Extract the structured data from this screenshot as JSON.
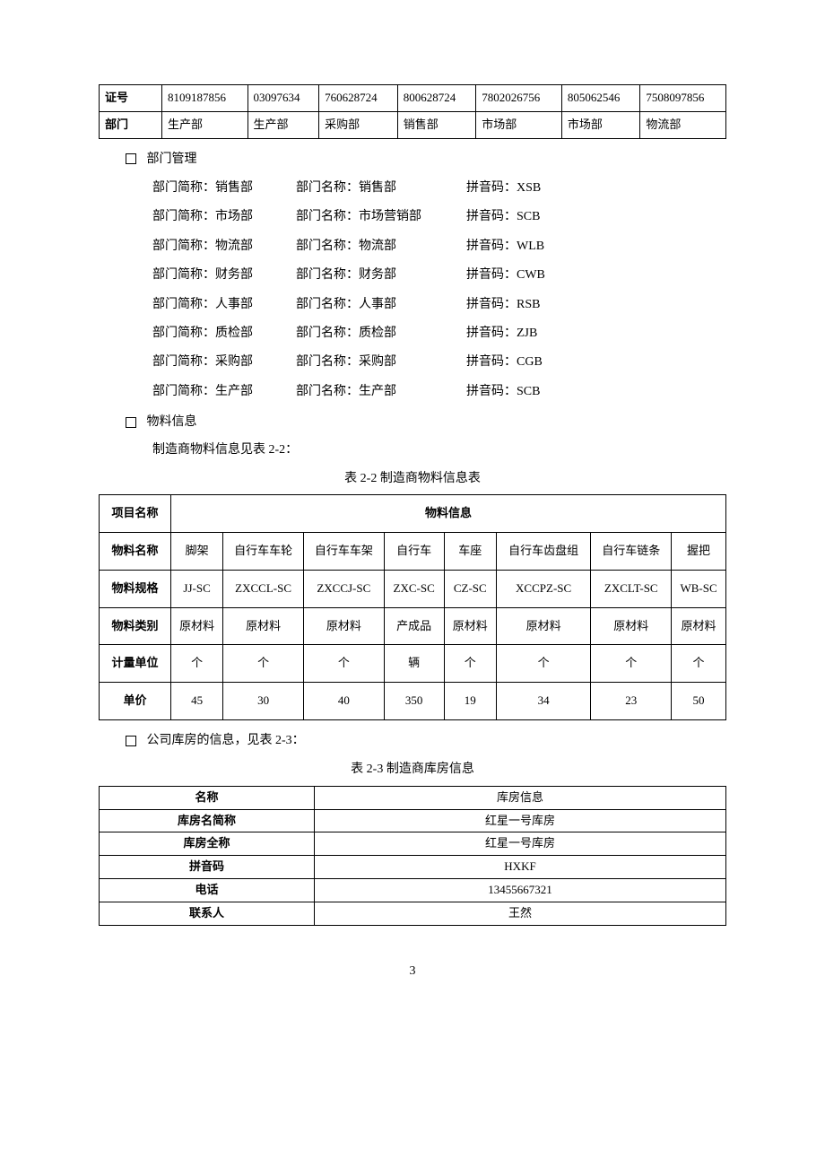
{
  "table1": {
    "row1_header": "证号",
    "row1_cells": [
      "8109187856",
      "03097634",
      "760628724",
      "800628724",
      "7802026756",
      "805062546",
      "7508097856"
    ],
    "row2_header": "部门",
    "row2_cells": [
      "生产部",
      "生产部",
      "采购部",
      "销售部",
      "市场部",
      "市场部",
      "物流部"
    ]
  },
  "section_dept_title": "部门管理",
  "dept_rows": [
    {
      "short_label": "部门简称：",
      "short": "销售部",
      "name_label": "部门名称：",
      "name": "销售部",
      "code_label": "拼音码：",
      "code": "XSB"
    },
    {
      "short_label": "部门简称：",
      "short": "市场部",
      "name_label": "部门名称：",
      "name": "市场营销部",
      "code_label": "拼音码：",
      "code": "SCB"
    },
    {
      "short_label": "部门简称：",
      "short": "物流部",
      "name_label": "部门名称：",
      "name": "物流部",
      "code_label": "拼音码：",
      "code": "WLB"
    },
    {
      "short_label": "部门简称：",
      "short": "财务部",
      "name_label": "部门名称：",
      "name": "财务部",
      "code_label": "拼音码：",
      "code": "CWB"
    },
    {
      "short_label": "部门简称：",
      "short": "人事部",
      "name_label": "部门名称：",
      "name": "人事部",
      "code_label": "拼音码：",
      "code": "RSB"
    },
    {
      "short_label": "部门简称：",
      "short": "质检部",
      "name_label": "部门名称：",
      "name": "质检部",
      "code_label": "拼音码：",
      "code": "ZJB"
    },
    {
      "short_label": "部门简称：",
      "short": "采购部",
      "name_label": "部门名称：",
      "name": "采购部",
      "code_label": "拼音码：",
      "code": "CGB"
    },
    {
      "short_label": "部门简称：",
      "short": "生产部",
      "name_label": "部门名称：",
      "name": "生产部",
      "code_label": "拼音码：",
      "code": "SCB"
    }
  ],
  "section_material_title": "物料信息",
  "material_note": "制造商物料信息见表 2-2：",
  "table2_caption": "表 2-2   制造商物料信息表",
  "table2": {
    "header_row1_col1": "项目名称",
    "header_row1_merged": "物料信息",
    "rows": [
      {
        "header": "物料名称",
        "cells": [
          "脚架",
          "自行车车轮",
          "自行车车架",
          "自行车",
          "车座",
          "自行车齿盘组",
          "自行车链条",
          "握把"
        ]
      },
      {
        "header": "物料规格",
        "cells": [
          "JJ-SC",
          "ZXCCL-SC",
          "ZXCCJ-SC",
          "ZXC-SC",
          "CZ-SC",
          "XCCPZ-SC",
          "ZXCLT-SC",
          "WB-SC"
        ]
      },
      {
        "header": "物料类别",
        "cells": [
          "原材料",
          "原材料",
          "原材料",
          "产成品",
          "原材料",
          "原材料",
          "原材料",
          "原材料"
        ]
      },
      {
        "header": "计量单位",
        "cells": [
          "个",
          "个",
          "个",
          "辆",
          "个",
          "个",
          "个",
          "个"
        ]
      },
      {
        "header": "单价",
        "cells": [
          "45",
          "30",
          "40",
          "350",
          "19",
          "34",
          "23",
          "50"
        ]
      }
    ]
  },
  "section_warehouse_title": "公司库房的信息，见表 2-3：",
  "table3_caption": "表 2-3   制造商库房信息",
  "table3": {
    "rows": [
      {
        "header": "名称",
        "value": "库房信息"
      },
      {
        "header": "库房名简称",
        "value": "红星一号库房"
      },
      {
        "header": "库房全称",
        "value": "红星一号库房"
      },
      {
        "header": "拼音码",
        "value": "HXKF"
      },
      {
        "header": "电话",
        "value": "13455667321"
      },
      {
        "header": "联系人",
        "value": "王然"
      }
    ]
  },
  "page_number": "3"
}
